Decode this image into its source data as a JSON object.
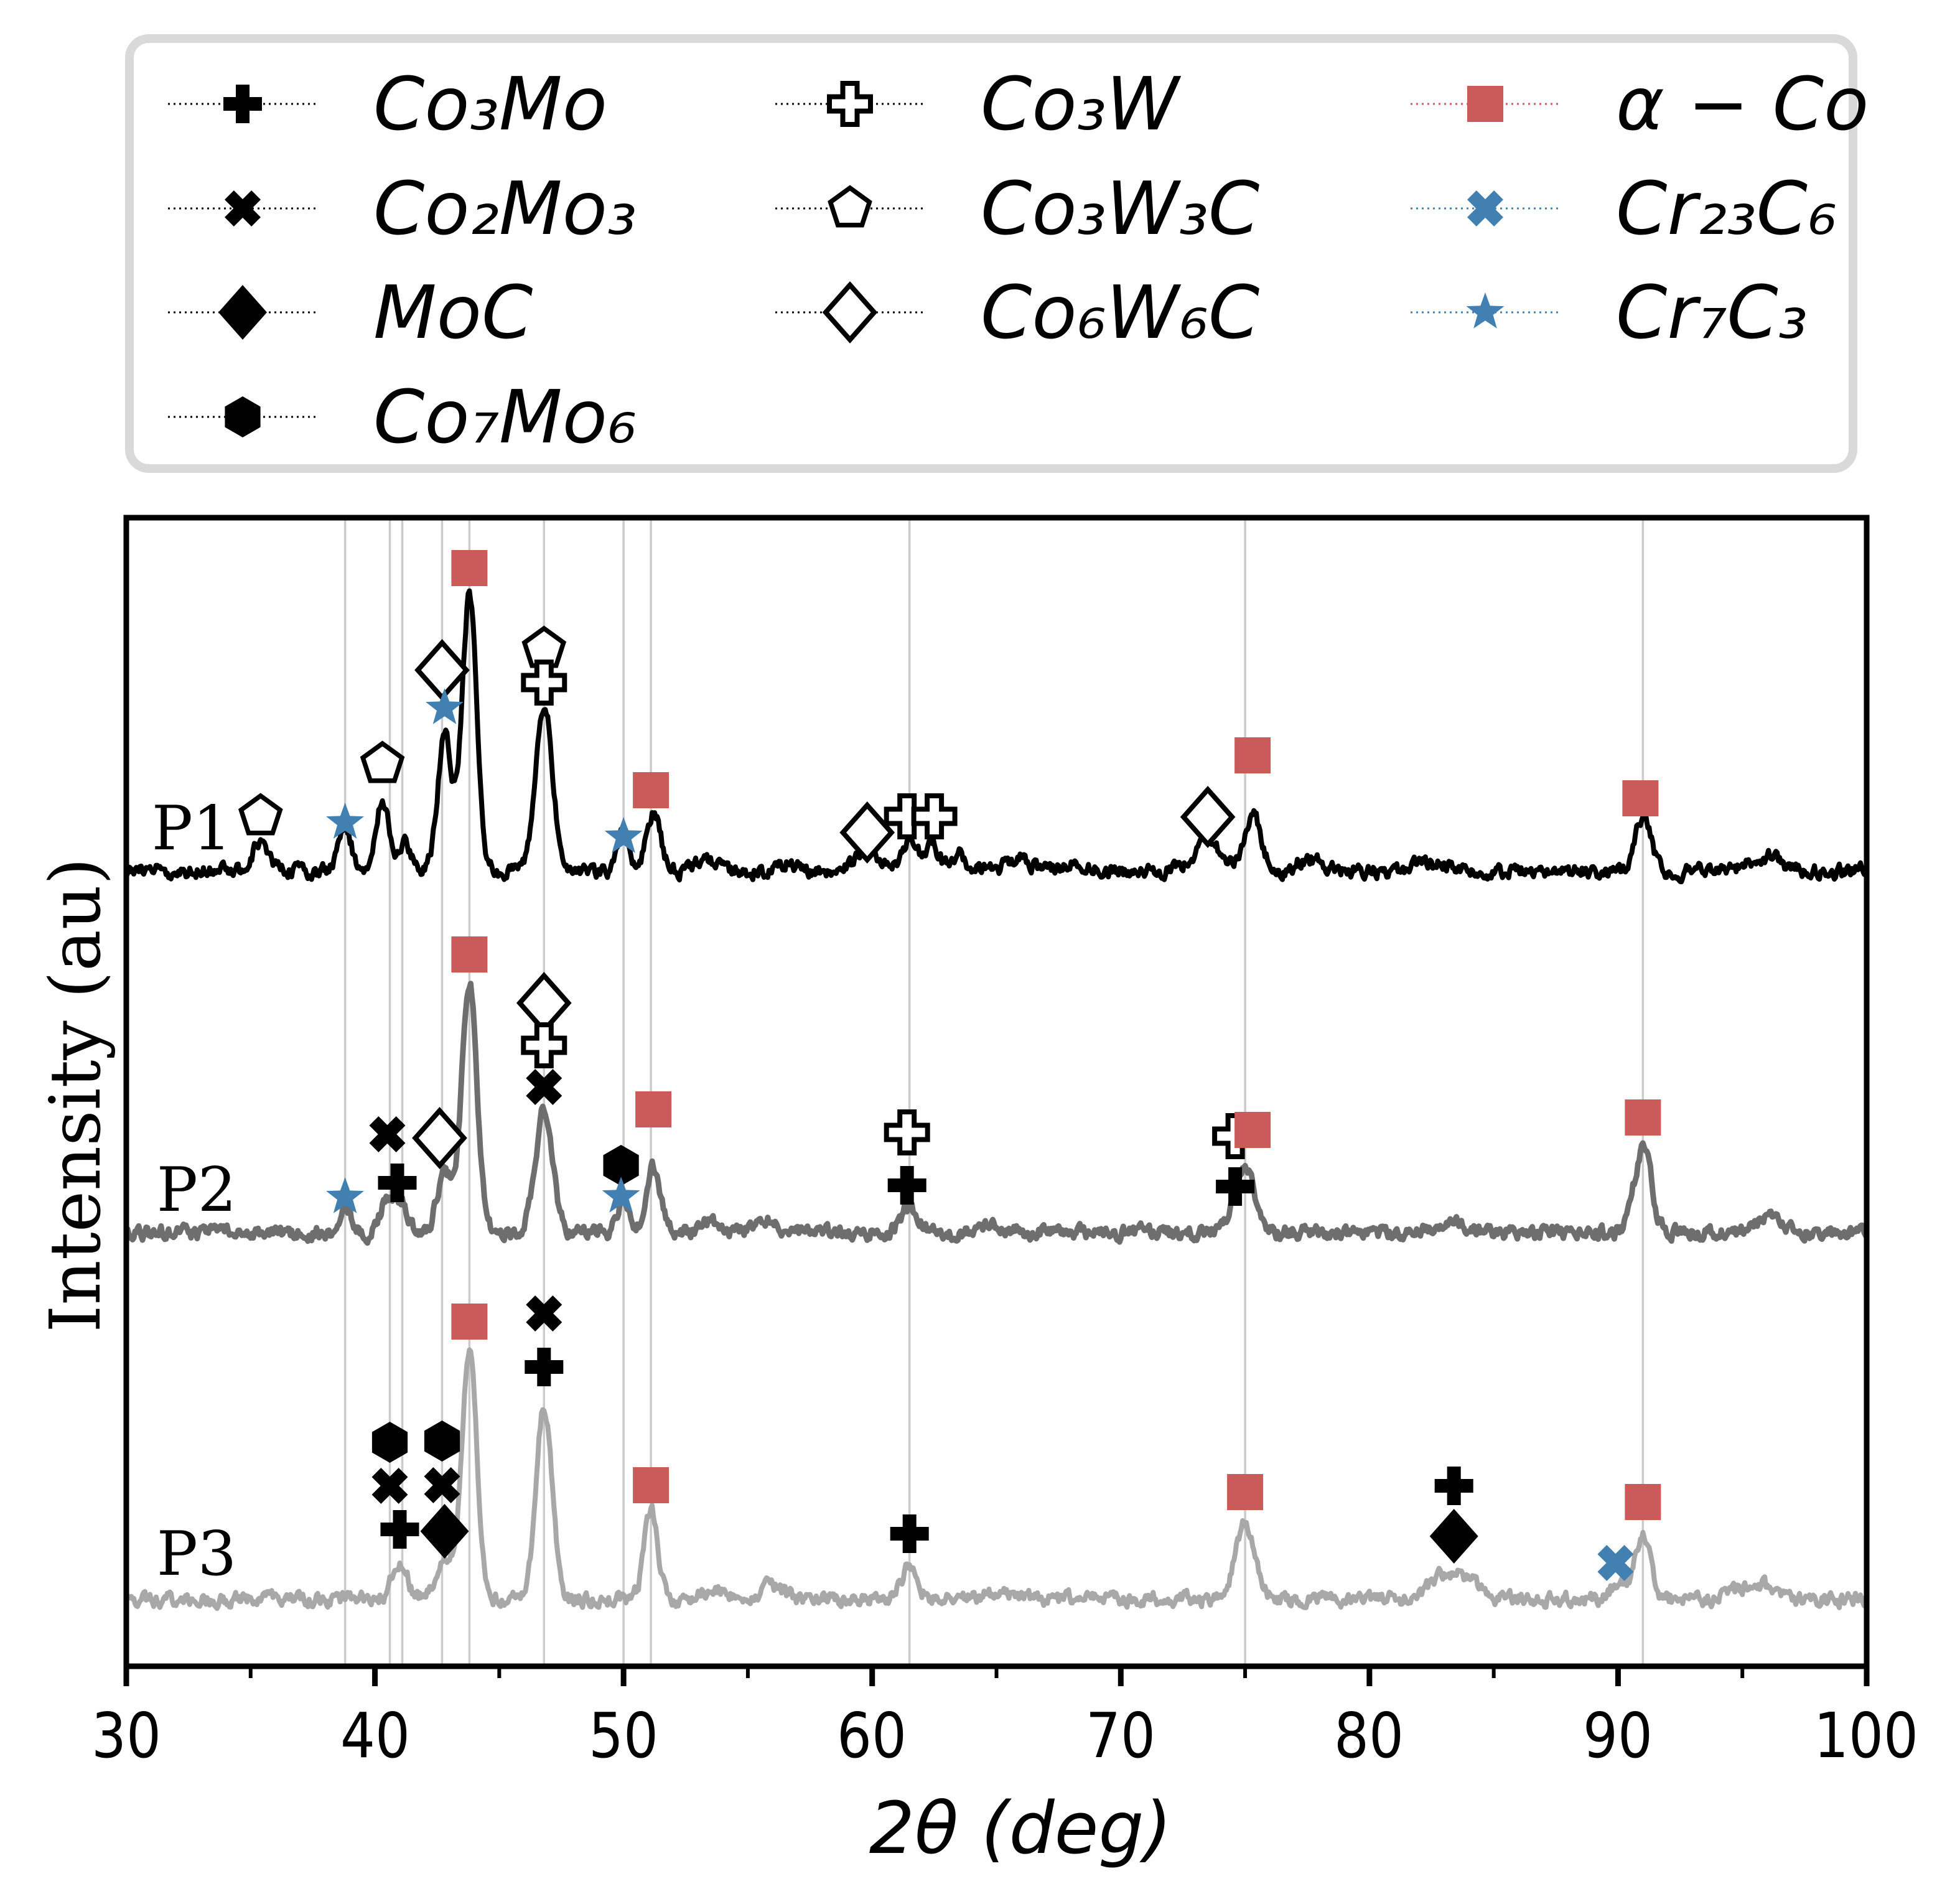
{
  "figure": {
    "xlabel": "2θ (deg)",
    "ylabel": "Intensity (au)"
  },
  "palette": {
    "accent_red": "#CB5B5B",
    "accent_blue": "#4180B0",
    "p1_curve": "#000000",
    "p2_curve": "#6E6E6E",
    "p3_curve": "#A8A8A8",
    "gridline": "#CBCBCB",
    "legend_border": "#D9D9D9"
  },
  "legend": {
    "items": [
      {
        "label": "Co₃Mo",
        "symbol": "plus",
        "color": "#000000"
      },
      {
        "label": "Co₂Mo₃",
        "symbol": "x",
        "color": "#000000"
      },
      {
        "label": "MoC",
        "symbol": "diamond",
        "color": "#000000"
      },
      {
        "label": "Co₇Mo₆",
        "symbol": "hexagon",
        "color": "#000000"
      },
      {
        "label": "Co₃W",
        "symbol": "plus-open",
        "color": "#000000"
      },
      {
        "label": "Co₃W₃C",
        "symbol": "pentagon-open",
        "color": "#000000"
      },
      {
        "label": "Co₆W₆C",
        "symbol": "diamond-open",
        "color": "#000000"
      },
      {
        "label": "α − Co",
        "symbol": "square",
        "color": "#CB5B5B"
      },
      {
        "label": "Cr₂₃C₆",
        "symbol": "x",
        "color": "#4180B0"
      },
      {
        "label": "Cr₇C₃",
        "symbol": "star",
        "color": "#4180B0"
      }
    ]
  },
  "chart_data": {
    "type": "line",
    "title": "",
    "xlabel": "2θ (deg)",
    "ylabel": "Intensity (au)",
    "xlim": [
      30,
      100
    ],
    "ylim_note": "arbitrary intensity units, three stacked XRD patterns",
    "grid": "vertical reference lines only",
    "legend_position": "top",
    "x_major_ticks": [
      {
        "v": 30,
        "label": "30"
      },
      {
        "v": 40,
        "label": "40"
      },
      {
        "v": 50,
        "label": "50"
      },
      {
        "v": 60,
        "label": "60"
      },
      {
        "v": 70,
        "label": "70"
      },
      {
        "v": 80,
        "label": "80"
      },
      {
        "v": 90,
        "label": "90"
      },
      {
        "v": 100,
        "label": "100"
      }
    ],
    "x_minor_ticks": [
      35,
      45,
      55,
      65,
      75,
      85,
      95
    ],
    "gridlines_x": [
      38.8,
      40.6,
      41.1,
      42.7,
      43.8,
      46.8,
      50.0,
      51.1,
      61.5,
      75.0,
      91.0
    ],
    "symbol_phase_map": {
      "plus": "Co3Mo",
      "x": "Co2Mo3",
      "diamond": "MoC",
      "hexagon": "Co7Mo6",
      "plus-open": "Co3W",
      "pentagon-open": "Co3W3C",
      "diamond-open": "Co6W6C",
      "square": "alpha-Co",
      "x-blue": "Cr23C6",
      "star": "Cr7C3"
    },
    "series": [
      {
        "name": "P1",
        "color": "#000000",
        "line_width": 8,
        "noise_seed": 11,
        "peaks_deg_h_sigma": [
          [
            35.4,
            48,
            0.3
          ],
          [
            38.8,
            75,
            0.24
          ],
          [
            40.3,
            115,
            0.26
          ],
          [
            41.2,
            50,
            0.24
          ],
          [
            42.8,
            218,
            0.28
          ],
          [
            43.8,
            442,
            0.3
          ],
          [
            46.8,
            268,
            0.34
          ],
          [
            50.0,
            62,
            0.24
          ],
          [
            51.2,
            95,
            0.28
          ],
          [
            53.3,
            16,
            0.4
          ],
          [
            56.5,
            14,
            0.4
          ],
          [
            59.8,
            35,
            0.45
          ],
          [
            61.5,
            52,
            0.28
          ],
          [
            62.4,
            45,
            0.28
          ],
          [
            63.5,
            25,
            0.3
          ],
          [
            65.9,
            20,
            0.5
          ],
          [
            68.4,
            12,
            0.5
          ],
          [
            73.5,
            50,
            0.5
          ],
          [
            75.3,
            90,
            0.34
          ],
          [
            77.6,
            20,
            0.5
          ],
          [
            82.4,
            12,
            0.6
          ],
          [
            91.0,
            88,
            0.32
          ],
          [
            95.9,
            24,
            0.6
          ]
        ],
        "markers": [
          {
            "x": 35.4,
            "dy": 88,
            "s": "pentagon-open"
          },
          {
            "x": 38.8,
            "dy": 78,
            "s": "star"
          },
          {
            "x": 40.3,
            "dy": 172,
            "s": "pentagon-open"
          },
          {
            "x": 42.7,
            "dy": 323,
            "s": "diamond-open"
          },
          {
            "x": 42.8,
            "dy": 262,
            "s": "star"
          },
          {
            "x": 43.8,
            "dy": 487,
            "s": "square"
          },
          {
            "x": 46.8,
            "dy": 357,
            "s": "pentagon-open"
          },
          {
            "x": 46.8,
            "dy": 303,
            "s": "plus-open"
          },
          {
            "x": 50.0,
            "dy": 55,
            "s": "star"
          },
          {
            "x": 51.1,
            "dy": 130,
            "s": "square"
          },
          {
            "x": 59.8,
            "dy": 62,
            "s": "diamond-open"
          },
          {
            "x": 61.4,
            "dy": 88,
            "s": "plus-open"
          },
          {
            "x": 62.5,
            "dy": 88,
            "s": "plus-open"
          },
          {
            "x": 73.5,
            "dy": 87,
            "s": "diamond-open"
          },
          {
            "x": 75.3,
            "dy": 186,
            "s": "square"
          },
          {
            "x": 90.9,
            "dy": 117,
            "s": "square"
          }
        ]
      },
      {
        "name": "P2",
        "color": "#6E6E6E",
        "line_width": 9,
        "noise_seed": 22,
        "peaks_deg_h_sigma": [
          [
            38.8,
            45,
            0.24
          ],
          [
            40.5,
            60,
            0.24
          ],
          [
            41.1,
            50,
            0.24
          ],
          [
            42.8,
            100,
            0.3
          ],
          [
            43.8,
            405,
            0.3
          ],
          [
            46.8,
            195,
            0.34
          ],
          [
            50.0,
            50,
            0.24
          ],
          [
            51.2,
            105,
            0.27
          ],
          [
            53.5,
            18,
            0.4
          ],
          [
            55.7,
            20,
            0.45
          ],
          [
            61.5,
            42,
            0.34
          ],
          [
            64.9,
            12,
            0.5
          ],
          [
            75.0,
            112,
            0.38
          ],
          [
            83.2,
            15,
            0.7
          ],
          [
            91.0,
            135,
            0.34
          ],
          [
            96.1,
            20,
            0.6
          ]
        ],
        "markers": [
          {
            "x": 38.8,
            "dy": 57,
            "s": "star"
          },
          {
            "x": 40.5,
            "dy": 158,
            "s": "x"
          },
          {
            "x": 40.9,
            "dy": 80,
            "s": "plus"
          },
          {
            "x": 42.6,
            "dy": 152,
            "s": "diamond-open"
          },
          {
            "x": 43.8,
            "dy": 447,
            "s": "square"
          },
          {
            "x": 46.8,
            "dy": 369,
            "s": "diamond-open"
          },
          {
            "x": 46.8,
            "dy": 301,
            "s": "plus-open"
          },
          {
            "x": 46.8,
            "dy": 234,
            "s": "x"
          },
          {
            "x": 49.9,
            "dy": 108,
            "s": "hexagon"
          },
          {
            "x": 49.9,
            "dy": 58,
            "s": "star"
          },
          {
            "x": 51.2,
            "dy": 198,
            "s": "square"
          },
          {
            "x": 61.4,
            "dy": 161,
            "s": "plus-open"
          },
          {
            "x": 61.4,
            "dy": 76,
            "s": "plus"
          },
          {
            "x": 74.6,
            "dy": 155,
            "s": "plus-open"
          },
          {
            "x": 74.6,
            "dy": 74,
            "s": "plus"
          },
          {
            "x": 75.3,
            "dy": 165,
            "s": "square"
          },
          {
            "x": 91.0,
            "dy": 185,
            "s": "square"
          }
        ]
      },
      {
        "name": "P3",
        "color": "#A8A8A8",
        "line_width": 8,
        "noise_seed": 33,
        "peaks_deg_h_sigma": [
          [
            41.0,
            60,
            0.3
          ],
          [
            42.8,
            70,
            0.34
          ],
          [
            43.8,
            400,
            0.3
          ],
          [
            46.8,
            310,
            0.32
          ],
          [
            51.1,
            145,
            0.27
          ],
          [
            53.6,
            16,
            0.4
          ],
          [
            55.9,
            22,
            0.45
          ],
          [
            61.5,
            50,
            0.32
          ],
          [
            65.1,
            12,
            0.5
          ],
          [
            75.0,
            120,
            0.38
          ],
          [
            82.9,
            36,
            0.5
          ],
          [
            83.9,
            30,
            0.45
          ],
          [
            90.0,
            26,
            0.33
          ],
          [
            91.0,
            105,
            0.32
          ],
          [
            95.5,
            26,
            0.6
          ]
        ],
        "markers": [
          {
            "x": 40.6,
            "dy": 252,
            "s": "hexagon"
          },
          {
            "x": 40.6,
            "dy": 182,
            "s": "x"
          },
          {
            "x": 41.0,
            "dy": 112,
            "s": "plus"
          },
          {
            "x": 42.7,
            "dy": 254,
            "s": "hexagon"
          },
          {
            "x": 42.7,
            "dy": 183,
            "s": "x"
          },
          {
            "x": 42.8,
            "dy": 109,
            "s": "diamond"
          },
          {
            "x": 43.8,
            "dy": 446,
            "s": "square"
          },
          {
            "x": 46.8,
            "dy": 459,
            "s": "x"
          },
          {
            "x": 46.8,
            "dy": 373,
            "s": "plus"
          },
          {
            "x": 51.1,
            "dy": 183,
            "s": "square"
          },
          {
            "x": 61.5,
            "dy": 105,
            "s": "plus"
          },
          {
            "x": 75.0,
            "dy": 172,
            "s": "square"
          },
          {
            "x": 83.4,
            "dy": 182,
            "s": "plus"
          },
          {
            "x": 83.4,
            "dy": 101,
            "s": "diamond"
          },
          {
            "x": 89.9,
            "dy": 58,
            "s": "x",
            "c": "#4180B0"
          },
          {
            "x": 91.0,
            "dy": 156,
            "s": "square"
          }
        ]
      }
    ]
  }
}
